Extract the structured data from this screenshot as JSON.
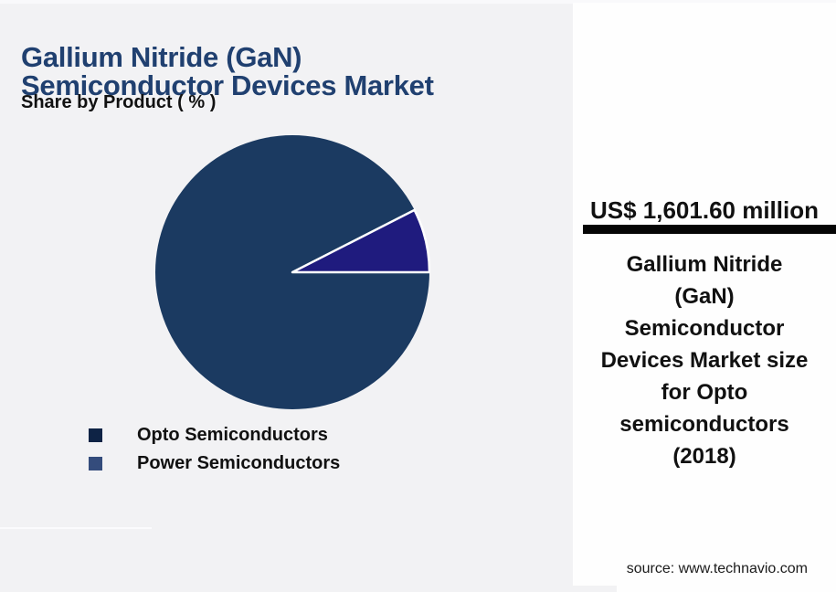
{
  "page": {
    "bg_color": "#f2f2f4",
    "panel_color": "#fefefe"
  },
  "header": {
    "title_lines": [
      "Gallium Nitride (GaN)",
      "Semiconductor Devices Market"
    ],
    "title_color": "#204070",
    "subtitle": "Share by Product ( % )"
  },
  "chart_data": {
    "type": "pie",
    "title": "Gallium Nitride (GaN) Semiconductor Devices Market",
    "subtitle": "Share by Product ( % )",
    "categories": [
      "Opto Semiconductors",
      "Power Semiconductors"
    ],
    "values": [
      92.5,
      7.5
    ],
    "colors": [
      "#1b3a61",
      "#1f1b7e"
    ],
    "slice_stroke_color": "#ffffff",
    "labels_shown": false,
    "legend_position": "bottom-left"
  },
  "legend": {
    "items": [
      {
        "label": "Opto Semiconductors",
        "marker_color": "#0e2345"
      },
      {
        "label": "Power Semiconductors",
        "marker_color": "#344c7c"
      }
    ]
  },
  "side_panel": {
    "value": "US$ 1,601.60 million",
    "bar_color": "#050505",
    "description_lines": [
      "Gallium Nitride",
      "(GaN)",
      "Semiconductor",
      "Devices Market size",
      "for Opto",
      "semiconductors",
      "(2018)"
    ],
    "source": "source: www.technavio.com"
  }
}
